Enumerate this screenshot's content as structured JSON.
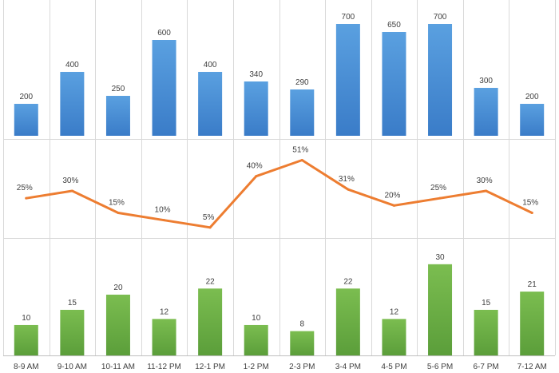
{
  "chart_data": [
    {
      "type": "bar",
      "categories": [
        "8-9 AM",
        "9-10 AM",
        "10-11 AM",
        "11-12 PM",
        "12-1 PM",
        "1-2 PM",
        "2-3 PM",
        "3-4 PM",
        "4-5 PM",
        "5-6 PM",
        "6-7 PM",
        "7-12 AM"
      ],
      "values": [
        200,
        400,
        250,
        600,
        400,
        340,
        290,
        700,
        650,
        700,
        300,
        200
      ],
      "labels": [
        "200",
        "400",
        "250",
        "600",
        "400",
        "340",
        "290",
        "700",
        "650",
        "700",
        "300",
        "200"
      ],
      "ylim": [
        0,
        800
      ],
      "color": "#4a8fd4",
      "grid": "vertical",
      "title": "",
      "xlabel": "",
      "ylabel": ""
    },
    {
      "type": "line",
      "categories": [
        "8-9 AM",
        "9-10 AM",
        "10-11 AM",
        "11-12 PM",
        "12-1 PM",
        "1-2 PM",
        "2-3 PM",
        "3-4 PM",
        "4-5 PM",
        "5-6 PM",
        "6-7 PM",
        "7-12 AM"
      ],
      "values": [
        25,
        30,
        15,
        10,
        5,
        40,
        51,
        31,
        20,
        25,
        30,
        15
      ],
      "labels": [
        "25%",
        "30%",
        "15%",
        "10%",
        "5%",
        "40%",
        "51%",
        "31%",
        "20%",
        "25%",
        "30%",
        "15%"
      ],
      "ylim": [
        0,
        60
      ],
      "color": "#ed7d31",
      "grid": "vertical",
      "title": "",
      "xlabel": "",
      "ylabel": ""
    },
    {
      "type": "bar",
      "categories": [
        "8-9 AM",
        "9-10 AM",
        "10-11 AM",
        "11-12 PM",
        "12-1 PM",
        "1-2 PM",
        "2-3 PM",
        "3-4 PM",
        "4-5 PM",
        "5-6 PM",
        "6-7 PM",
        "7-12 AM"
      ],
      "values": [
        10,
        15,
        20,
        12,
        22,
        10,
        8,
        22,
        12,
        30,
        15,
        21
      ],
      "labels": [
        "10",
        "15",
        "20",
        "12",
        "22",
        "10",
        "8",
        "22",
        "12",
        "30",
        "15",
        "21"
      ],
      "ylim": [
        0,
        36
      ],
      "color": "#6aad45",
      "grid": "vertical",
      "title": "",
      "xlabel": "",
      "ylabel": ""
    }
  ],
  "x_axis": {
    "labels": [
      "8-9 AM",
      "9-10 AM",
      "10-11 AM",
      "11-12 PM",
      "12-1 PM",
      "1-2 PM",
      "2-3 PM",
      "3-4 PM",
      "4-5 PM",
      "5-6 PM",
      "6-7 PM",
      "7-12 AM"
    ]
  },
  "colors": {
    "grid": "#d9d9d9",
    "axis": "#bfbfbf",
    "text": "#404040",
    "blue_dark": "#3a7cc8",
    "blue_light": "#5aa0e0",
    "green_dark": "#5b9e3a",
    "green_light": "#7bbd50",
    "line": "#ed7d31"
  }
}
